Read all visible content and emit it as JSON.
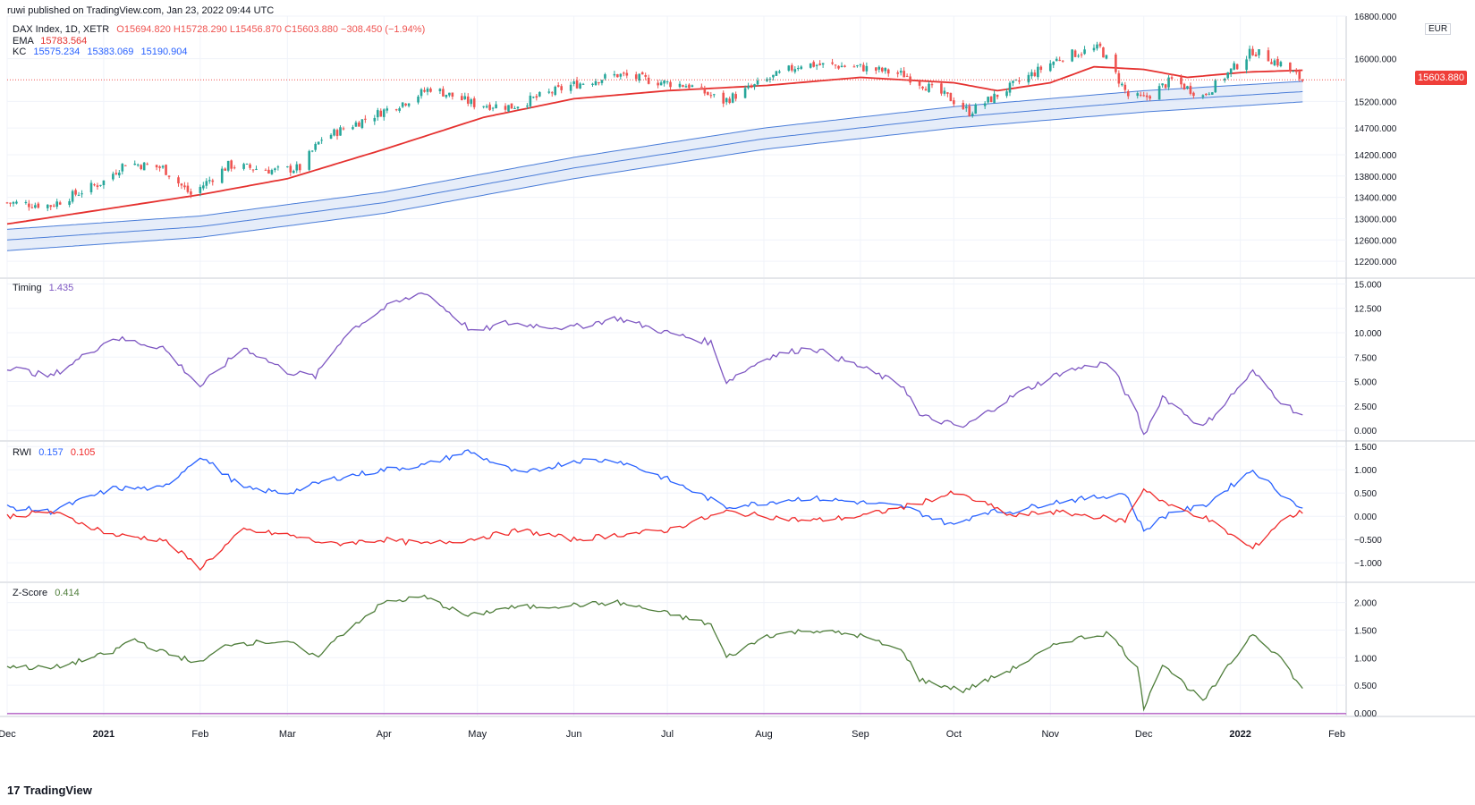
{
  "header": {
    "published": "ruwi published on TradingView.com, Jan 23, 2022 09:44 UTC",
    "symbol": "DAX Index, 1D, XETR",
    "ohlc": "O15694.820  H15728.290  L15456.870  C15603.880  −308.450 (−1.94%)",
    "ema_label": "EMA",
    "ema_value": "15783.564",
    "kc_label": "KC",
    "kc_values": [
      "15575.234",
      "15383.069",
      "15190.904"
    ],
    "timing_label": "Timing",
    "timing_value": "1.435",
    "rwi_label": "RWI",
    "rwi_values": [
      "0.157",
      "0.105"
    ],
    "zscore_label": "Z-Score",
    "zscore_value": "0.414"
  },
  "price_scale": {
    "currency": "EUR",
    "last_price": "15603.880"
  },
  "brand": "TradingView",
  "colors": {
    "up": "#26a69a",
    "down": "#ef5350",
    "ema": "#e5312f",
    "kc": "#4a7dd8",
    "kc_fill": "#dbe6f7",
    "timing": "#7e57c2",
    "rwi_high": "#2962ff",
    "rwi_low": "#f02a2a",
    "zscore": "#4e7d3a",
    "grid": "#f0f3fa",
    "zero": "#9c27b0"
  },
  "chart_data": [
    {
      "type": "candlestick",
      "title": "DAX Index, 1D, XETR",
      "x_range": [
        "2020-12-01",
        "2022-02-04"
      ],
      "x_tick_labels": [
        "Dec",
        "2021",
        "Feb",
        "Mar",
        "Apr",
        "May",
        "Jun",
        "Jul",
        "Aug",
        "Sep",
        "Oct",
        "Nov",
        "Dec",
        "2022",
        "Feb"
      ],
      "ylim": [
        11900,
        16800
      ],
      "y_tick_labels": [
        "16800.000",
        "16000.000",
        "15200.000",
        "14700.000",
        "14200.000",
        "13800.000",
        "13400.000",
        "13000.000",
        "12600.000",
        "12200.000"
      ],
      "close_path": [
        [
          "2020-12-01",
          13300
        ],
        [
          "2020-12-15",
          13250
        ],
        [
          "2021-01-01",
          13700
        ],
        [
          "2021-01-08",
          14050
        ],
        [
          "2021-01-20",
          13950
        ],
        [
          "2021-01-29",
          13450
        ],
        [
          "2021-02-10",
          14000
        ],
        [
          "2021-02-25",
          13900
        ],
        [
          "2021-03-05",
          13950
        ],
        [
          "2021-03-12",
          14500
        ],
        [
          "2021-03-31",
          15000
        ],
        [
          "2021-04-08",
          15200
        ],
        [
          "2021-04-16",
          15450
        ],
        [
          "2021-04-30",
          15150
        ],
        [
          "2021-05-12",
          15100
        ],
        [
          "2021-05-31",
          15500
        ],
        [
          "2021-06-15",
          15700
        ],
        [
          "2021-06-30",
          15550
        ],
        [
          "2021-07-08",
          15500
        ],
        [
          "2021-07-19",
          15200
        ],
        [
          "2021-08-02",
          15600
        ],
        [
          "2021-08-13",
          15900
        ],
        [
          "2021-08-31",
          15850
        ],
        [
          "2021-09-15",
          15700
        ],
        [
          "2021-09-30",
          15250
        ],
        [
          "2021-10-06",
          15000
        ],
        [
          "2021-10-20",
          15500
        ],
        [
          "2021-11-05",
          16050
        ],
        [
          "2021-11-17",
          16200
        ],
        [
          "2021-11-26",
          15300
        ],
        [
          "2021-12-01",
          15250
        ],
        [
          "2021-12-10",
          15600
        ],
        [
          "2021-12-20",
          15300
        ],
        [
          "2022-01-05",
          16150
        ],
        [
          "2022-01-14",
          15900
        ],
        [
          "2022-01-21",
          15604
        ]
      ],
      "series": [
        {
          "name": "EMA",
          "values": [
            [
              "2020-12-01",
              12900
            ],
            [
              "2021-01-04",
              13200
            ],
            [
              "2021-02-01",
              13450
            ],
            [
              "2021-03-01",
              13750
            ],
            [
              "2021-04-01",
              14300
            ],
            [
              "2021-05-03",
              14900
            ],
            [
              "2021-06-01",
              15250
            ],
            [
              "2021-07-01",
              15400
            ],
            [
              "2021-08-02",
              15500
            ],
            [
              "2021-09-01",
              15650
            ],
            [
              "2021-10-01",
              15550
            ],
            [
              "2021-10-15",
              15400
            ],
            [
              "2021-11-01",
              15550
            ],
            [
              "2021-11-15",
              15850
            ],
            [
              "2021-12-01",
              15800
            ],
            [
              "2021-12-15",
              15650
            ],
            [
              "2022-01-03",
              15750
            ],
            [
              "2022-01-21",
              15784
            ]
          ]
        },
        {
          "name": "KC upper",
          "values": [
            [
              "2020-12-01",
              12800
            ],
            [
              "2021-02-01",
              13050
            ],
            [
              "2021-04-01",
              13500
            ],
            [
              "2021-06-01",
              14150
            ],
            [
              "2021-08-01",
              14700
            ],
            [
              "2021-10-01",
              15100
            ],
            [
              "2021-12-01",
              15400
            ],
            [
              "2022-01-21",
              15575
            ]
          ]
        },
        {
          "name": "KC basis",
          "values": [
            [
              "2020-12-01",
              12600
            ],
            [
              "2021-02-01",
              12850
            ],
            [
              "2021-04-01",
              13300
            ],
            [
              "2021-06-01",
              13950
            ],
            [
              "2021-08-01",
              14500
            ],
            [
              "2021-10-01",
              14900
            ],
            [
              "2021-12-01",
              15200
            ],
            [
              "2022-01-21",
              15383
            ]
          ]
        },
        {
          "name": "KC lower",
          "values": [
            [
              "2020-12-01",
              12400
            ],
            [
              "2021-02-01",
              12650
            ],
            [
              "2021-04-01",
              13100
            ],
            [
              "2021-06-01",
              13750
            ],
            [
              "2021-08-01",
              14300
            ],
            [
              "2021-10-01",
              14700
            ],
            [
              "2021-12-01",
              15000
            ],
            [
              "2022-01-21",
              15191
            ]
          ]
        }
      ]
    },
    {
      "type": "line",
      "title": "Timing",
      "ylim": [
        -1,
        15.5
      ],
      "y_tick_labels": [
        "15.000",
        "12.500",
        "10.000",
        "7.500",
        "5.000",
        "2.500",
        "0.000"
      ],
      "series": [
        {
          "name": "Timing",
          "values": [
            [
              "2020-12-01",
              6.5
            ],
            [
              "2020-12-15",
              5.5
            ],
            [
              "2021-01-04",
              9.5
            ],
            [
              "2021-01-20",
              8.5
            ],
            [
              "2021-02-01",
              4.5
            ],
            [
              "2021-02-15",
              8.5
            ],
            [
              "2021-03-01",
              6
            ],
            [
              "2021-03-10",
              5.5
            ],
            [
              "2021-03-20",
              10
            ],
            [
              "2021-04-01",
              12.5
            ],
            [
              "2021-04-14",
              14.2
            ],
            [
              "2021-04-30",
              10
            ],
            [
              "2021-05-10",
              11
            ],
            [
              "2021-05-31",
              10.5
            ],
            [
              "2021-06-15",
              11.5
            ],
            [
              "2021-07-01",
              10
            ],
            [
              "2021-07-15",
              9
            ],
            [
              "2021-07-20",
              5
            ],
            [
              "2021-08-02",
              7.5
            ],
            [
              "2021-08-16",
              8.5
            ],
            [
              "2021-09-01",
              6.5
            ],
            [
              "2021-09-15",
              4.5
            ],
            [
              "2021-09-20",
              1.5
            ],
            [
              "2021-10-04",
              0.3
            ],
            [
              "2021-10-20",
              3.5
            ],
            [
              "2021-11-05",
              6
            ],
            [
              "2021-11-20",
              7
            ],
            [
              "2021-11-29",
              1.5
            ],
            [
              "2021-12-01",
              -0.6
            ],
            [
              "2021-12-07",
              3.5
            ],
            [
              "2021-12-20",
              0.3
            ],
            [
              "2022-01-05",
              6
            ],
            [
              "2022-01-14",
              3
            ],
            [
              "2022-01-21",
              1.435
            ]
          ]
        }
      ]
    },
    {
      "type": "line",
      "title": "RWI",
      "ylim": [
        -1.4,
        1.6
      ],
      "y_tick_labels": [
        "1.500",
        "1.000",
        "0.500",
        "0.000",
        "−0.500",
        "−1.000"
      ],
      "series": [
        {
          "name": "RWI high",
          "values": [
            [
              "2020-12-01",
              0.2
            ],
            [
              "2020-12-15",
              0.1
            ],
            [
              "2021-01-04",
              0.6
            ],
            [
              "2021-01-20",
              0.6
            ],
            [
              "2021-02-01",
              1.3
            ],
            [
              "2021-02-15",
              0.6
            ],
            [
              "2021-03-01",
              0.5
            ],
            [
              "2021-03-15",
              0.8
            ],
            [
              "2021-04-01",
              1.0
            ],
            [
              "2021-04-14",
              1.1
            ],
            [
              "2021-04-28",
              1.4
            ],
            [
              "2021-05-15",
              0.9
            ],
            [
              "2021-06-01",
              1.2
            ],
            [
              "2021-06-15",
              1.2
            ],
            [
              "2021-07-01",
              0.8
            ],
            [
              "2021-07-20",
              0.2
            ],
            [
              "2021-08-15",
              0.4
            ],
            [
              "2021-09-01",
              0.3
            ],
            [
              "2021-09-15",
              0.2
            ],
            [
              "2021-10-01",
              -0.2
            ],
            [
              "2021-10-10",
              0.1
            ],
            [
              "2021-10-20",
              0.1
            ],
            [
              "2021-11-01",
              0.3
            ],
            [
              "2021-11-15",
              0.4
            ],
            [
              "2021-11-25",
              0.5
            ],
            [
              "2021-12-01",
              -0.3
            ],
            [
              "2021-12-10",
              0.1
            ],
            [
              "2021-12-20",
              0.2
            ],
            [
              "2022-01-05",
              1.0
            ],
            [
              "2022-01-14",
              0.5
            ],
            [
              "2022-01-21",
              0.157
            ]
          ]
        },
        {
          "name": "RWI low",
          "values": [
            [
              "2020-12-01",
              0.0
            ],
            [
              "2020-12-15",
              0.1
            ],
            [
              "2021-01-04",
              -0.4
            ],
            [
              "2021-01-20",
              -0.5
            ],
            [
              "2021-02-01",
              -1.1
            ],
            [
              "2021-02-15",
              -0.3
            ],
            [
              "2021-03-01",
              -0.4
            ],
            [
              "2021-03-15",
              -0.6
            ],
            [
              "2021-04-01",
              -0.5
            ],
            [
              "2021-04-14",
              -0.6
            ],
            [
              "2021-04-28",
              -0.5
            ],
            [
              "2021-05-15",
              -0.3
            ],
            [
              "2021-06-01",
              -0.5
            ],
            [
              "2021-06-15",
              -0.4
            ],
            [
              "2021-07-01",
              -0.3
            ],
            [
              "2021-07-20",
              0.1
            ],
            [
              "2021-08-15",
              -0.1
            ],
            [
              "2021-09-01",
              0.0
            ],
            [
              "2021-09-15",
              0.2
            ],
            [
              "2021-10-01",
              0.5
            ],
            [
              "2021-10-10",
              0.3
            ],
            [
              "2021-10-20",
              0.0
            ],
            [
              "2021-11-01",
              0.1
            ],
            [
              "2021-11-15",
              0.0
            ],
            [
              "2021-11-25",
              -0.1
            ],
            [
              "2021-12-01",
              0.6
            ],
            [
              "2021-12-10",
              0.2
            ],
            [
              "2021-12-20",
              0.0
            ],
            [
              "2022-01-05",
              -0.7
            ],
            [
              "2022-01-14",
              -0.1
            ],
            [
              "2022-01-21",
              0.105
            ]
          ]
        }
      ]
    },
    {
      "type": "line",
      "title": "Z-Score",
      "ylim": [
        -0.05,
        2.35
      ],
      "y_tick_labels": [
        "2.000",
        "1.500",
        "1.000",
        "0.500",
        "0.000"
      ],
      "series": [
        {
          "name": "Z-Score",
          "values": [
            [
              "2020-12-01",
              0.85
            ],
            [
              "2020-12-15",
              0.8
            ],
            [
              "2021-01-04",
              1.1
            ],
            [
              "2021-01-10",
              1.35
            ],
            [
              "2021-01-20",
              1.1
            ],
            [
              "2021-02-01",
              0.9
            ],
            [
              "2021-02-10",
              1.25
            ],
            [
              "2021-03-01",
              1.3
            ],
            [
              "2021-03-10",
              1.0
            ],
            [
              "2021-03-20",
              1.5
            ],
            [
              "2021-04-01",
              2.0
            ],
            [
              "2021-04-14",
              2.1
            ],
            [
              "2021-04-28",
              1.75
            ],
            [
              "2021-05-10",
              1.9
            ],
            [
              "2021-05-31",
              1.95
            ],
            [
              "2021-06-15",
              2.0
            ],
            [
              "2021-07-01",
              1.8
            ],
            [
              "2021-07-15",
              1.6
            ],
            [
              "2021-07-20",
              1.0
            ],
            [
              "2021-08-02",
              1.4
            ],
            [
              "2021-08-16",
              1.5
            ],
            [
              "2021-09-01",
              1.4
            ],
            [
              "2021-09-15",
              1.1
            ],
            [
              "2021-09-20",
              0.6
            ],
            [
              "2021-10-04",
              0.4
            ],
            [
              "2021-10-20",
              0.8
            ],
            [
              "2021-11-05",
              1.3
            ],
            [
              "2021-11-20",
              1.45
            ],
            [
              "2021-11-29",
              0.8
            ],
            [
              "2021-12-01",
              0.1
            ],
            [
              "2021-12-07",
              0.9
            ],
            [
              "2021-12-20",
              0.2
            ],
            [
              "2022-01-05",
              1.45
            ],
            [
              "2022-01-14",
              1.0
            ],
            [
              "2022-01-21",
              0.414
            ]
          ]
        }
      ]
    }
  ]
}
